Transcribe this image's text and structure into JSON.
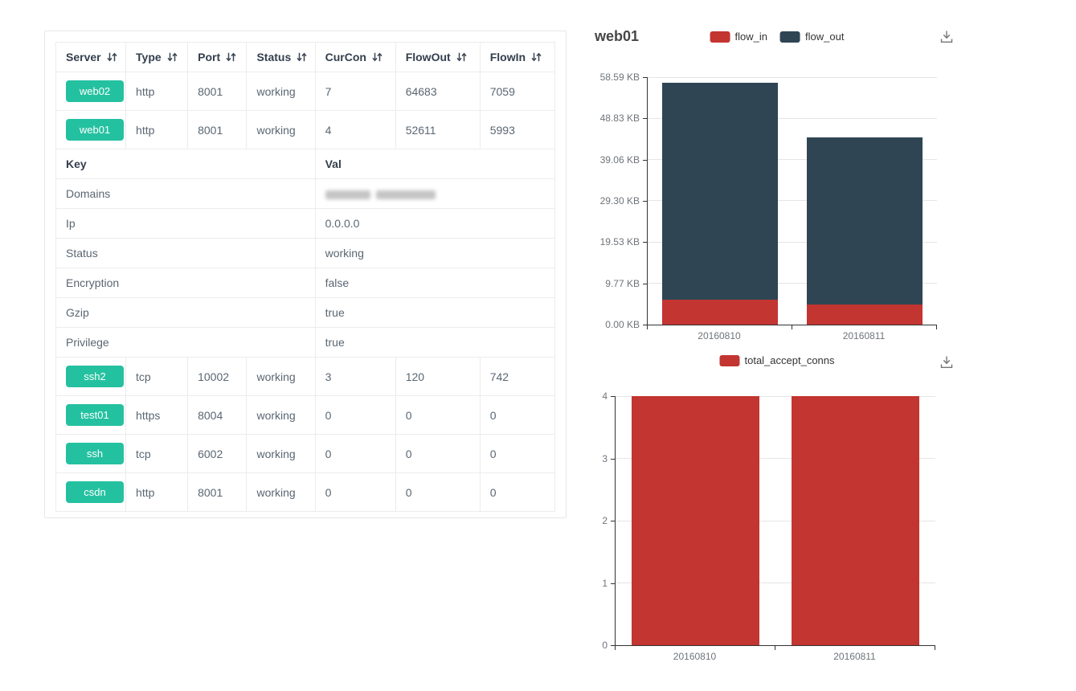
{
  "table": {
    "columns": [
      {
        "label": "Server"
      },
      {
        "label": "Type"
      },
      {
        "label": "Port"
      },
      {
        "label": "Status"
      },
      {
        "label": "CurCon"
      },
      {
        "label": "FlowOut"
      },
      {
        "label": "FlowIn"
      }
    ],
    "rows_top": [
      {
        "server": "web02",
        "type": "http",
        "port": "8001",
        "status": "working",
        "curcon": "7",
        "flowout": "64683",
        "flowin": "7059"
      },
      {
        "server": "web01",
        "type": "http",
        "port": "8001",
        "status": "working",
        "curcon": "4",
        "flowout": "52611",
        "flowin": "5993"
      }
    ],
    "kv_header": {
      "key": "Key",
      "val": "Val"
    },
    "kv_rows": [
      {
        "key": "Domains",
        "val": "",
        "masked": true
      },
      {
        "key": "Ip",
        "val": "0.0.0.0"
      },
      {
        "key": "Status",
        "val": "working"
      },
      {
        "key": "Encryption",
        "val": "false"
      },
      {
        "key": "Gzip",
        "val": "true"
      },
      {
        "key": "Privilege",
        "val": "true"
      }
    ],
    "rows_bottom": [
      {
        "server": "ssh2",
        "type": "tcp",
        "port": "10002",
        "status": "working",
        "curcon": "3",
        "flowout": "120",
        "flowin": "742"
      },
      {
        "server": "test01",
        "type": "https",
        "port": "8004",
        "status": "working",
        "curcon": "0",
        "flowout": "0",
        "flowin": "0"
      },
      {
        "server": "ssh",
        "type": "tcp",
        "port": "6002",
        "status": "working",
        "curcon": "0",
        "flowout": "0",
        "flowin": "0"
      },
      {
        "server": "csdn",
        "type": "http",
        "port": "8001",
        "status": "working",
        "curcon": "0",
        "flowout": "0",
        "flowin": "0"
      }
    ],
    "badge_color": "#24c1a0"
  },
  "chart_data": [
    {
      "type": "bar",
      "stacked": true,
      "title": "web01",
      "categories": [
        "20160810",
        "20160811"
      ],
      "series": [
        {
          "name": "flow_in",
          "color": "#c23531",
          "values": [
            5.9,
            4.8
          ]
        },
        {
          "name": "flow_out",
          "color": "#2f4554",
          "values": [
            51.4,
            39.5
          ]
        }
      ],
      "xlabel": "",
      "ylabel": "KB",
      "ylim": [
        0,
        58.59
      ],
      "yticks": [
        {
          "v": 0,
          "label": "0.00 KB"
        },
        {
          "v": 9.77,
          "label": "9.77 KB"
        },
        {
          "v": 19.53,
          "label": "19.53 KB"
        },
        {
          "v": 29.3,
          "label": "29.30 KB"
        },
        {
          "v": 39.06,
          "label": "39.06 KB"
        },
        {
          "v": 48.83,
          "label": "48.83 KB"
        },
        {
          "v": 58.59,
          "label": "58.59 KB"
        }
      ],
      "grid": true,
      "legend_position": "top-center",
      "toolbox": "save-as-image"
    },
    {
      "type": "bar",
      "stacked": false,
      "title": "",
      "categories": [
        "20160810",
        "20160811"
      ],
      "series": [
        {
          "name": "total_accept_conns",
          "color": "#c23531",
          "values": [
            4,
            4
          ]
        }
      ],
      "xlabel": "",
      "ylabel": "",
      "ylim": [
        0,
        4
      ],
      "yticks": [
        {
          "v": 0,
          "label": "0"
        },
        {
          "v": 1,
          "label": "1"
        },
        {
          "v": 2,
          "label": "2"
        },
        {
          "v": 3,
          "label": "3"
        },
        {
          "v": 4,
          "label": "4"
        }
      ],
      "grid": true,
      "legend_position": "top-center",
      "toolbox": "save-as-image"
    }
  ]
}
